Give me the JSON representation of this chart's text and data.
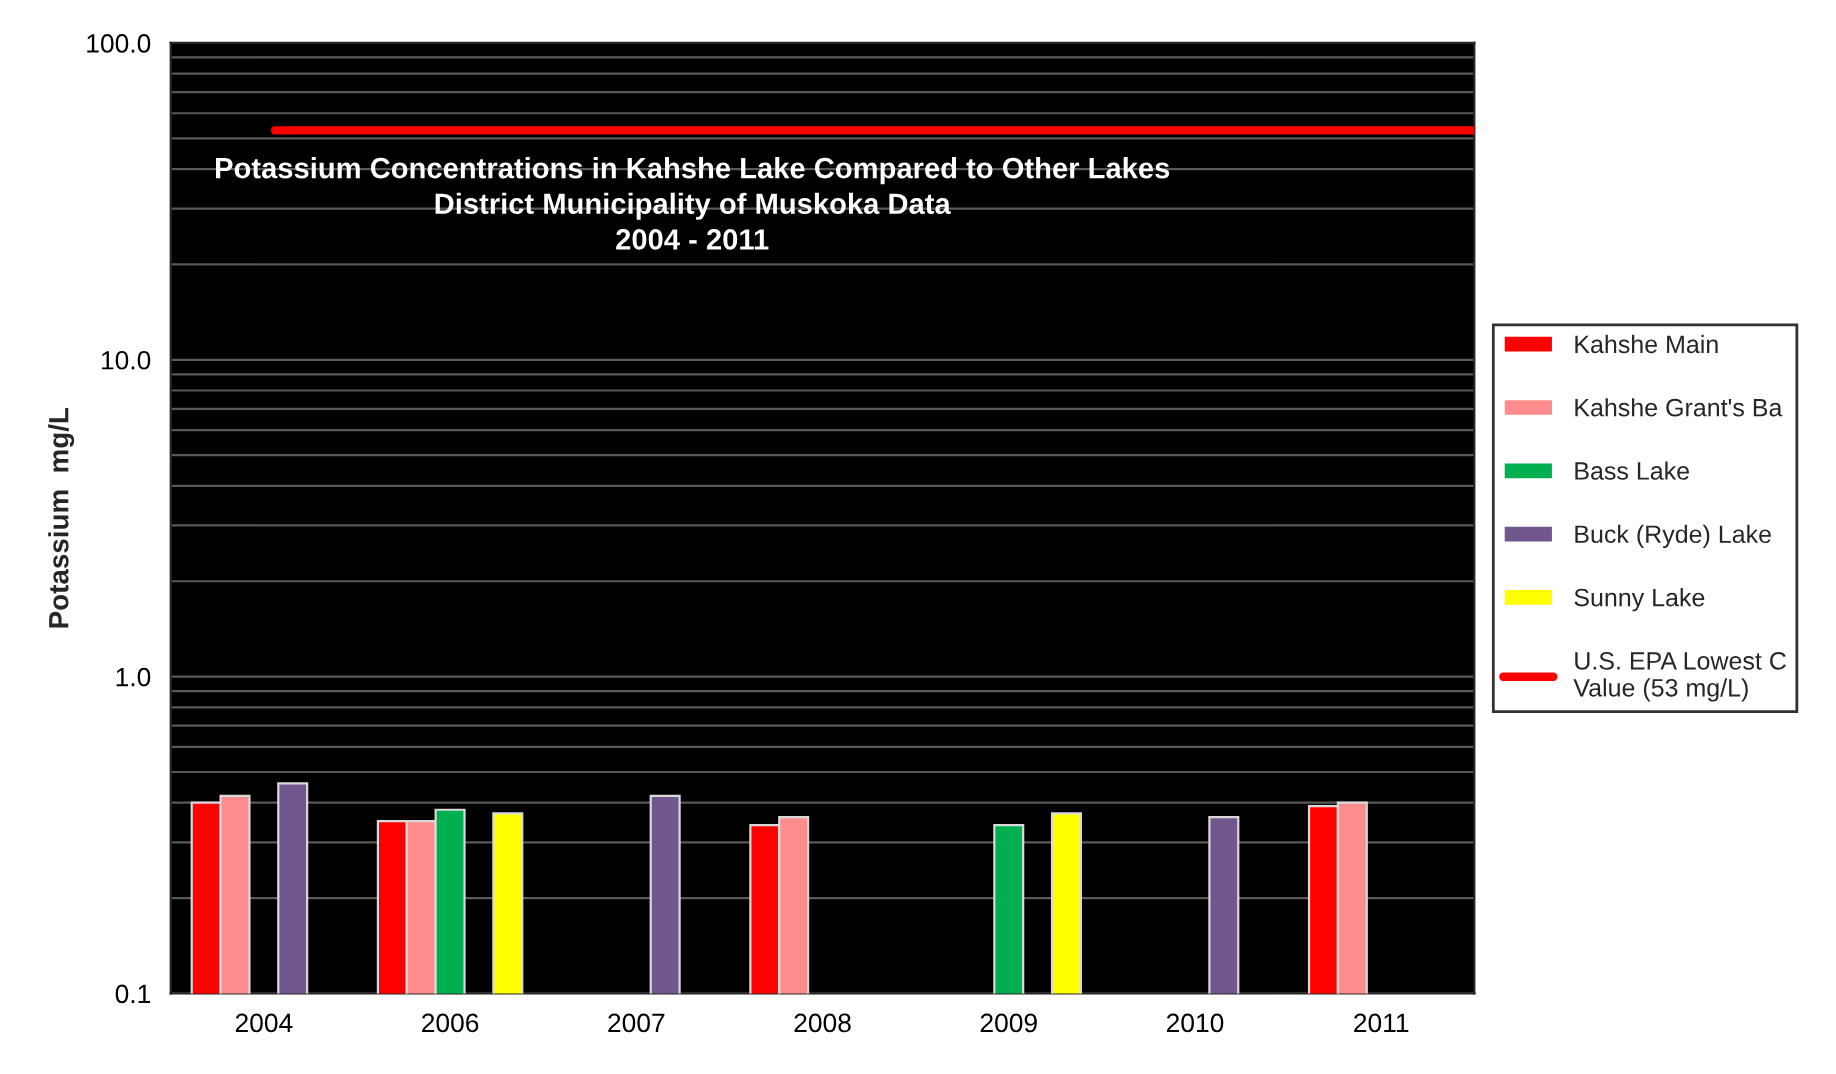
{
  "chart_data": {
    "type": "bar",
    "title": "Potassium Concentrations in Kahshe Lake Compared to Other Lakes\nDistrict Municipality of Muskoka Data\n2004 - 2011",
    "ylabel": "Potassium  mg/L",
    "categories": [
      "2004",
      "2006",
      "2007",
      "2008",
      "2009",
      "2010",
      "2011"
    ],
    "series": [
      {
        "name": "Kahshe Main",
        "color": "#ff0000",
        "values": [
          0.4,
          0.35,
          null,
          0.34,
          null,
          null,
          0.39
        ]
      },
      {
        "name": "Kahshe Grant's Ba",
        "color": "#ff8c8c",
        "values": [
          0.42,
          0.35,
          null,
          0.36,
          null,
          null,
          0.4
        ]
      },
      {
        "name": "Bass Lake",
        "color": "#00b050",
        "values": [
          null,
          0.38,
          null,
          null,
          0.34,
          null,
          null
        ]
      },
      {
        "name": "Buck (Ryde) Lake",
        "color": "#70588f",
        "values": [
          0.46,
          null,
          0.42,
          null,
          null,
          0.36,
          null
        ]
      },
      {
        "name": "Sunny Lake",
        "color": "#ffff00",
        "values": [
          null,
          0.37,
          null,
          null,
          0.37,
          null,
          null
        ]
      }
    ],
    "ref_lines": [
      {
        "axis": "y",
        "value": 53,
        "label": "U.S. EPA Lowest C\nValue (53 mg/L)",
        "color": "#ff0000"
      }
    ],
    "log": true,
    "ylim": [
      0.1,
      100
    ],
    "yticks": [
      {
        "value": 0.1,
        "label": "0.1"
      },
      {
        "value": 1,
        "label": "1.0"
      },
      {
        "value": 10,
        "label": "10.0"
      },
      {
        "value": 100,
        "label": "100.0"
      }
    ],
    "grid": "y",
    "legend": "right"
  }
}
